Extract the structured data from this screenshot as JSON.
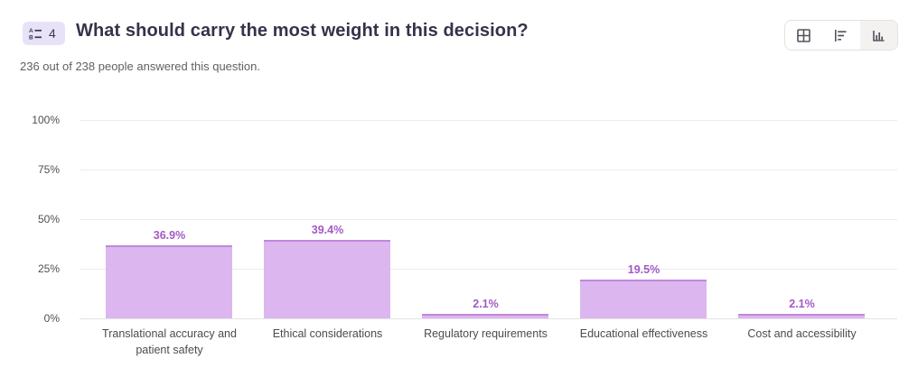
{
  "header": {
    "question_number": "4",
    "title": "What should carry the most weight in this decision?",
    "subtitle": "236 out of 238 people answered this question."
  },
  "view_toggle": {
    "options": [
      {
        "name": "table-view",
        "icon": "grid-icon",
        "selected": false
      },
      {
        "name": "horizontal-bar-view",
        "icon": "bar-chart-horizontal-icon",
        "selected": false
      },
      {
        "name": "vertical-bar-view",
        "icon": "bar-chart-vertical-icon",
        "selected": true
      }
    ]
  },
  "colors": {
    "bar_fill": "#dcb6ef",
    "bar_border": "#c287dd",
    "value_label": "#a35ac5",
    "badge_bg": "#e8e2f8",
    "title_text": "#34334a",
    "gridline": "#ececec"
  },
  "chart_data": {
    "type": "bar",
    "categories": [
      "Translational accuracy and patient safety",
      "Ethical considerations",
      "Regulatory requirements",
      "Educational effectiveness",
      "Cost and accessibility"
    ],
    "values": [
      36.9,
      39.4,
      2.1,
      19.5,
      2.1
    ],
    "value_labels": [
      "36.9%",
      "39.4%",
      "2.1%",
      "19.5%",
      "2.1%"
    ],
    "y_ticks": [
      "100%",
      "75%",
      "50%",
      "25%",
      "0%"
    ],
    "ylim": [
      0,
      100
    ],
    "grid": true,
    "legend": false,
    "title": "What should carry the most weight in this decision?",
    "xlabel": "",
    "ylabel": ""
  }
}
